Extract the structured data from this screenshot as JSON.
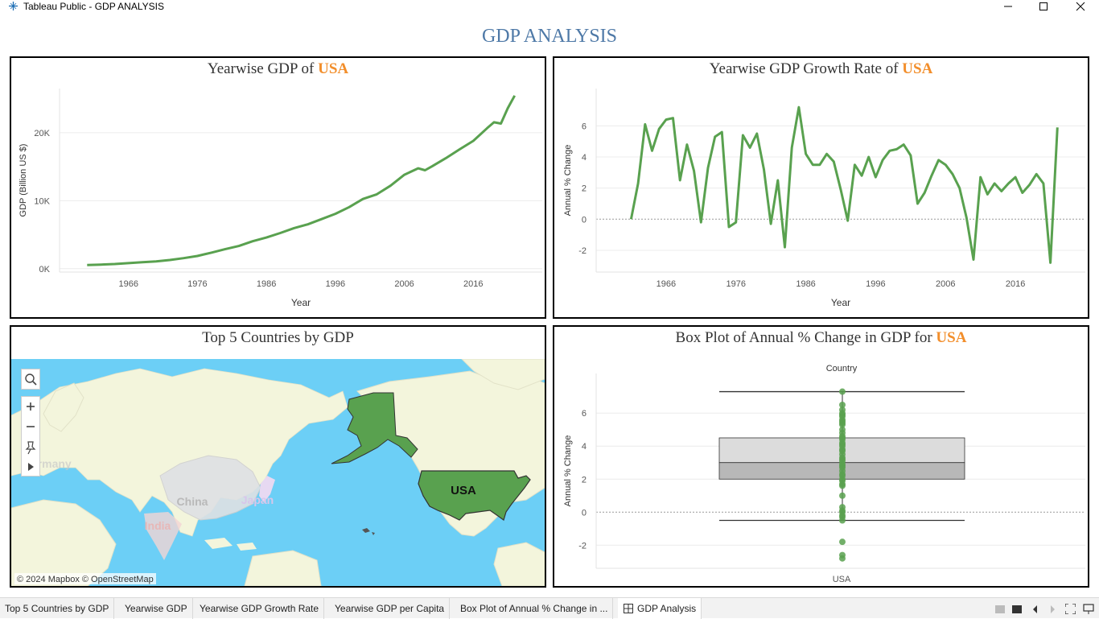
{
  "window": {
    "title": "Tableau Public - GDP ANALYSIS"
  },
  "dashboard": {
    "title": "GDP ANALYSIS"
  },
  "panels": {
    "gdp": {
      "title_prefix": "Yearwise GDP of ",
      "highlight": "USA",
      "ylabel": "GDP (Billion US $)",
      "xlabel": "Year"
    },
    "growth": {
      "title_prefix": "Yearwise GDP Growth Rate of ",
      "highlight": "USA",
      "ylabel": "Annual % Change",
      "xlabel": "Year"
    },
    "map": {
      "title": "Top 5 Countries by GDP",
      "labels": {
        "usa": "USA",
        "china": "China",
        "japan": "Japan",
        "india": "India",
        "germany": "Germany"
      },
      "attribution": "© 2024 Mapbox © OpenStreetMap"
    },
    "box": {
      "title_prefix": "Box Plot of Annual % Change in GDP for ",
      "highlight": "USA",
      "ylabel": "Annual % Change",
      "column_header": "Country",
      "category": "USA"
    }
  },
  "colors": {
    "accent": "#f28e2b",
    "title_blue": "#4e79a7",
    "series_green": "#59a14f",
    "water": "#6ccff6",
    "land": "#f3f5dc"
  },
  "tabs": [
    {
      "label": "Top 5 Countries by GDP"
    },
    {
      "label": "Yearwise GDP"
    },
    {
      "label": "Yearwise GDP Growth Rate"
    },
    {
      "label": "Yearwise GDP per Capita"
    },
    {
      "label": "Box Plot of Annual % Change in ..."
    },
    {
      "label": "GDP Analysis",
      "active": true
    }
  ],
  "chart_data": [
    {
      "type": "line",
      "title": "Yearwise GDP of USA",
      "xlabel": "Year",
      "ylabel": "GDP (Billion US $)",
      "x_ticks": [
        1966,
        1976,
        1986,
        1996,
        2006,
        2016
      ],
      "y_ticks": [
        0,
        10000,
        20000
      ],
      "y_tick_labels": [
        "0K",
        "10K",
        "20K"
      ],
      "xlim": [
        1956,
        2026
      ],
      "ylim": [
        -500,
        26500
      ],
      "series": [
        {
          "x": [
            1960,
            1962,
            1964,
            1966,
            1968,
            1970,
            1972,
            1974,
            1976,
            1978,
            1980,
            1982,
            1984,
            1986,
            1988,
            1990,
            1992,
            1994,
            1996,
            1998,
            2000,
            2002,
            2004,
            2006,
            2008,
            2009,
            2010,
            2012,
            2014,
            2016,
            2018,
            2019,
            2020,
            2021,
            2022
          ],
          "values": [
            540,
            600,
            690,
            810,
            940,
            1070,
            1280,
            1550,
            1870,
            2350,
            2860,
            3340,
            4040,
            4580,
            5240,
            5960,
            6520,
            7290,
            8070,
            9060,
            10250,
            10940,
            12210,
            13820,
            14770,
            14480,
            15050,
            16250,
            17550,
            18800,
            20660,
            21540,
            21350,
            23600,
            25460
          ]
        }
      ]
    },
    {
      "type": "line",
      "title": "Yearwise GDP Growth Rate of USA",
      "xlabel": "Year",
      "ylabel": "Annual % Change",
      "x_ticks": [
        1966,
        1976,
        1986,
        1996,
        2006,
        2016
      ],
      "y_ticks": [
        -2,
        0,
        2,
        4,
        6
      ],
      "xlim": [
        1956,
        2026
      ],
      "ylim": [
        -3.4,
        8.4
      ],
      "series": [
        {
          "x": [
            1961,
            1962,
            1963,
            1964,
            1965,
            1966,
            1967,
            1968,
            1969,
            1970,
            1971,
            1972,
            1973,
            1974,
            1975,
            1976,
            1977,
            1978,
            1979,
            1980,
            1981,
            1982,
            1983,
            1984,
            1985,
            1986,
            1987,
            1988,
            1989,
            1990,
            1991,
            1992,
            1993,
            1994,
            1995,
            1996,
            1997,
            1998,
            1999,
            2000,
            2001,
            2002,
            2003,
            2004,
            2005,
            2006,
            2007,
            2008,
            2009,
            2010,
            2011,
            2012,
            2013,
            2014,
            2015,
            2016,
            2017,
            2018,
            2019,
            2020,
            2021,
            2022
          ],
          "values": [
            0.0,
            2.3,
            6.1,
            4.4,
            5.8,
            6.4,
            6.5,
            2.5,
            4.8,
            3.1,
            -0.2,
            3.3,
            5.3,
            5.6,
            -0.5,
            -0.2,
            5.4,
            4.6,
            5.5,
            3.2,
            -0.3,
            2.5,
            -1.8,
            4.6,
            7.2,
            4.2,
            3.5,
            3.5,
            4.2,
            3.7,
            1.9,
            -0.1,
            3.5,
            2.8,
            4.0,
            2.7,
            3.8,
            4.4,
            4.5,
            4.8,
            4.1,
            1.0,
            1.7,
            2.8,
            3.8,
            3.5,
            2.9,
            2.0,
            0.1,
            -2.6,
            2.7,
            1.6,
            2.3,
            1.8,
            2.3,
            2.7,
            1.7,
            2.2,
            2.9,
            2.3,
            -2.8,
            5.9
          ]
        }
      ]
    },
    {
      "type": "box",
      "title": "Box Plot of Annual % Change in GDP for USA",
      "ylabel": "Annual % Change",
      "categories": [
        "USA"
      ],
      "y_ticks": [
        -2,
        0,
        2,
        4,
        6
      ],
      "ylim": [
        -3.4,
        8.4
      ],
      "whisker_low": -0.5,
      "q1": 2.0,
      "median": 3.0,
      "q3": 4.5,
      "whisker_high": 7.3,
      "points": [
        7.3,
        6.5,
        6.2,
        6.0,
        5.9,
        5.8,
        5.6,
        5.5,
        5.4,
        5.3,
        5.0,
        4.8,
        4.6,
        4.5,
        4.4,
        4.2,
        4.1,
        4.0,
        3.8,
        3.7,
        3.5,
        3.3,
        3.2,
        3.1,
        2.9,
        2.8,
        2.7,
        2.5,
        2.3,
        2.2,
        2.0,
        1.9,
        1.7,
        1.6,
        1.0,
        0.3,
        0.1,
        0.0,
        -0.2,
        -0.3,
        -0.5,
        -1.8,
        -2.6,
        -2.8
      ]
    }
  ]
}
